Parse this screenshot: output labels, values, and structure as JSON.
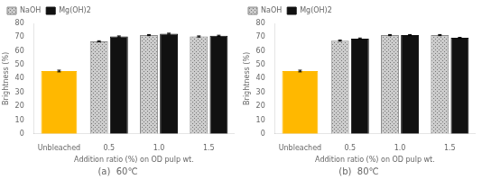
{
  "chart_data": [
    {
      "type": "bar",
      "title": "(a)  60℃",
      "xlabel": "Addition ratio (%) on OD pulp wt.",
      "ylabel": "Brightness (%)",
      "categories": [
        "Unbleached",
        "0.5",
        "1.0",
        "1.5"
      ],
      "series": [
        {
          "color": "#FFB800",
          "values": [
            45.5,
            null,
            null,
            null
          ],
          "errors": [
            0.6,
            null,
            null,
            null
          ]
        },
        {
          "name": "NaOH",
          "color": "#cccccc",
          "values": [
            null,
            67.0,
            71.5,
            70.5
          ],
          "errors": [
            null,
            0.4,
            0.4,
            0.4
          ]
        },
        {
          "name": "Mg(OH)2",
          "color": "#111111",
          "values": [
            null,
            70.5,
            72.5,
            71.0
          ],
          "errors": [
            null,
            0.4,
            0.4,
            0.4
          ]
        }
      ],
      "ylim": [
        0,
        80
      ],
      "yticks": [
        0,
        10,
        20,
        30,
        40,
        50,
        60,
        70,
        80
      ],
      "grid": false,
      "legend": "upper left"
    },
    {
      "type": "bar",
      "title": "(b)  80℃",
      "xlabel": "Addition ratio (%) on OD pulp wt.",
      "ylabel": "Brightness (%)",
      "categories": [
        "Unbleached",
        "0.5",
        "1.0",
        "1.5"
      ],
      "series": [
        {
          "color": "#FFB800",
          "values": [
            45.5,
            null,
            null,
            null
          ],
          "errors": [
            0.6,
            null,
            null,
            null
          ]
        },
        {
          "name": "NaOH",
          "color": "#cccccc",
          "values": [
            null,
            67.5,
            71.5,
            71.5
          ],
          "errors": [
            null,
            0.4,
            0.4,
            0.4
          ]
        },
        {
          "name": "Mg(OH)2",
          "color": "#111111",
          "values": [
            null,
            69.0,
            71.5,
            69.5
          ],
          "errors": [
            null,
            0.4,
            0.4,
            0.4
          ]
        }
      ],
      "ylim": [
        0,
        80
      ],
      "yticks": [
        0,
        10,
        20,
        30,
        40,
        50,
        60,
        70,
        80
      ],
      "grid": false,
      "legend": "upper left"
    }
  ]
}
